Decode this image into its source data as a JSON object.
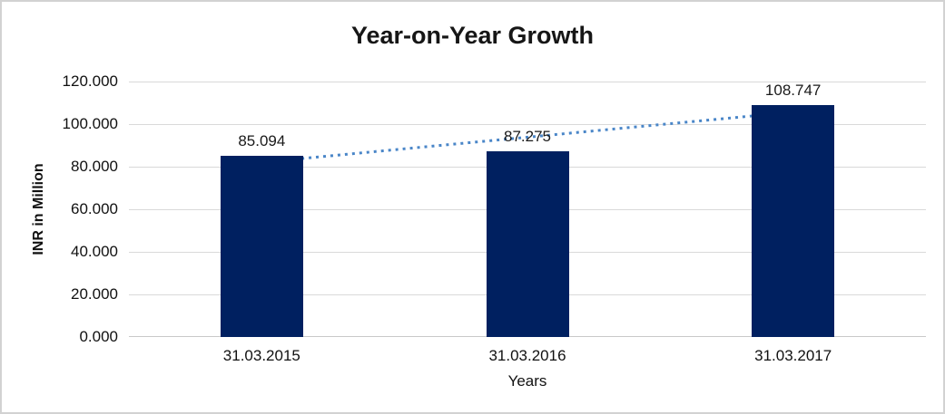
{
  "window": {
    "background": "#ffffff",
    "frame_border_color": "#d2d2d2"
  },
  "chart_data": {
    "type": "bar",
    "title": "Year-on-Year Growth",
    "categories": [
      "31.03.2015",
      "31.03.2016",
      "31.03.2017"
    ],
    "values": [
      85.094,
      87.275,
      108.747
    ],
    "data_labels": [
      "85.094",
      "87.275",
      "108.747"
    ],
    "xlabel": "Years",
    "ylabel": "INR in Million",
    "ylim": [
      0,
      120
    ],
    "ytick_step": 20,
    "yticks": [
      "120.000",
      "100.000",
      "80.000",
      "60.000",
      "40.000",
      "20.000",
      "0.000"
    ],
    "grid": "horizontal",
    "legend": "none",
    "colors": {
      "bar": "#002060",
      "gridline": "#d9d9d9",
      "axis_line": "#c9c9c9",
      "text": "#111111",
      "trendline": "#4a86c8"
    },
    "trendline": {
      "shape": "linear",
      "style": "dotted",
      "endpoint_values": [
        81.9,
        105.5
      ]
    }
  }
}
